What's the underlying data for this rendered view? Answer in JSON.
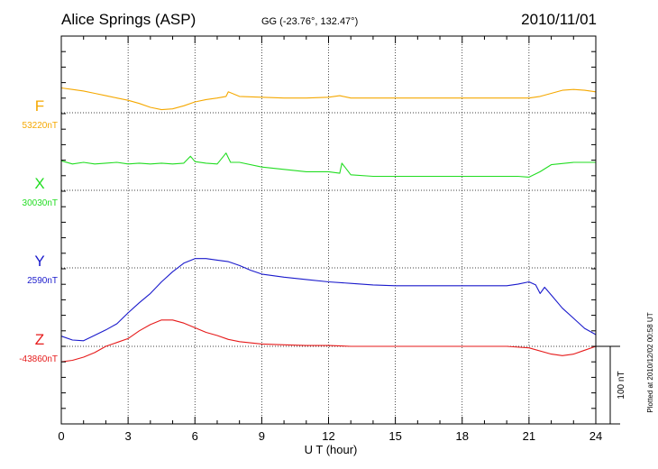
{
  "header": {
    "station": "Alice Springs (ASP)",
    "coords": "GG (-23.76°, 132.47°)",
    "date": "2010/11/01"
  },
  "footer": {
    "plotted": "Plotted at 2010/12/02 00:58 UT"
  },
  "chart_data": {
    "type": "line",
    "title": "Alice Springs (ASP)",
    "xlabel": "U T (hour)",
    "xlim": [
      0,
      24
    ],
    "xticks": [
      "0",
      "3",
      "6",
      "9",
      "12",
      "15",
      "18",
      "21",
      "24"
    ],
    "grid": true,
    "scale_bar": "100 nT",
    "scale_bar_nT": 100,
    "series": [
      {
        "name": "F",
        "baseline_label": "53220nT",
        "baseline_nT": 53220,
        "color": "#f5a800",
        "x": [
          0,
          0.5,
          1,
          1.5,
          2,
          2.5,
          3,
          3.5,
          4,
          4.5,
          5,
          5.5,
          6,
          6.5,
          7,
          7.4,
          7.5,
          8,
          9,
          10,
          11,
          12,
          12.5,
          13,
          14,
          15,
          16,
          17,
          18,
          19,
          20,
          21,
          21.5,
          22,
          22.5,
          23,
          23.5,
          24
        ],
        "y": [
          32,
          30,
          28,
          25,
          22,
          19,
          16,
          12,
          7,
          4,
          5,
          9,
          14,
          17,
          19,
          21,
          27,
          21,
          20,
          19,
          19,
          20,
          22,
          19,
          19,
          19,
          19,
          19,
          19,
          19,
          19,
          19,
          21,
          25,
          29,
          30,
          29,
          27
        ]
      },
      {
        "name": "X",
        "baseline_label": "30030nT",
        "baseline_nT": 30030,
        "color": "#22dd22",
        "x": [
          0,
          0.5,
          1,
          1.5,
          2,
          2.5,
          3,
          3.5,
          4,
          4.5,
          5,
          5.5,
          5.8,
          6,
          6.5,
          7,
          7.4,
          7.6,
          8,
          9,
          10,
          11,
          12,
          12.5,
          12.6,
          13,
          14,
          15,
          16,
          17,
          18,
          19,
          20,
          20.5,
          21,
          21.5,
          22,
          23,
          24
        ],
        "y": [
          38,
          34,
          36,
          34,
          35,
          36,
          34,
          35,
          34,
          35,
          34,
          35,
          44,
          37,
          35,
          34,
          48,
          36,
          36,
          30,
          27,
          24,
          24,
          22,
          35,
          20,
          18,
          18,
          18,
          18,
          18,
          18,
          18,
          18,
          17,
          24,
          33,
          36,
          36
        ]
      },
      {
        "name": "Y",
        "baseline_label": "2590nT",
        "baseline_nT": 2590,
        "color": "#1a1acc",
        "x": [
          0,
          0.5,
          1,
          1.5,
          2,
          2.5,
          3,
          3.5,
          4,
          4.5,
          5,
          5.5,
          6,
          6.5,
          7,
          7.5,
          8,
          8.5,
          9,
          10,
          11,
          12,
          13,
          14,
          15,
          16,
          17,
          18,
          19,
          20,
          20.5,
          21,
          21.3,
          21.5,
          21.7,
          22,
          22.5,
          23,
          23.5,
          24
        ],
        "y": [
          -88,
          -93,
          -94,
          -87,
          -80,
          -72,
          -58,
          -45,
          -33,
          -18,
          -5,
          6,
          12,
          12,
          10,
          8,
          3,
          -3,
          -8,
          -12,
          -15,
          -18,
          -20,
          -22,
          -23,
          -23,
          -23,
          -23,
          -23,
          -23,
          -21,
          -18,
          -22,
          -33,
          -25,
          -35,
          -52,
          -65,
          -78,
          -86
        ]
      },
      {
        "name": "Z",
        "baseline_label": "-43860nT",
        "baseline_nT": -43860,
        "color": "#e61a1a",
        "x": [
          0,
          0.5,
          1,
          1.5,
          2,
          2.5,
          3,
          3.5,
          4,
          4.5,
          5,
          5.5,
          6,
          6.5,
          7,
          7.5,
          8,
          9,
          10,
          11,
          12,
          13,
          14,
          15,
          16,
          17,
          18,
          19,
          20,
          21,
          22,
          22.5,
          23,
          23.5,
          24
        ],
        "y": [
          -20,
          -18,
          -14,
          -8,
          0,
          5,
          10,
          20,
          28,
          34,
          34,
          30,
          24,
          18,
          14,
          9,
          6,
          3,
          2,
          1,
          1,
          0,
          0,
          0,
          0,
          0,
          0,
          0,
          0,
          -2,
          -10,
          -12,
          -10,
          -5,
          0
        ]
      }
    ]
  }
}
